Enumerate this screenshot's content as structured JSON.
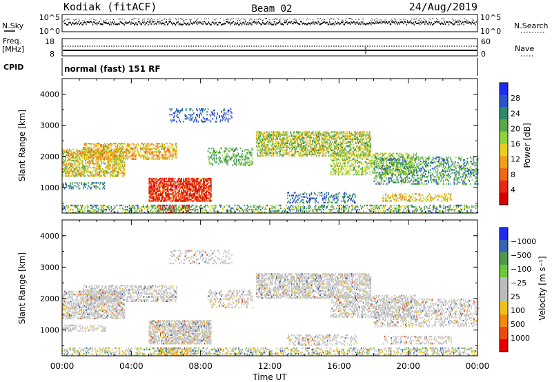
{
  "header": {
    "station": "Kodiak (fitACF)",
    "beam": "Beam 02",
    "date": "24/Aug/2019"
  },
  "strip_panels": {
    "nsky": {
      "label": "N.Sky",
      "tick_top": "10^5",
      "tick_bottom": "10^0"
    },
    "nsearch": {
      "label": "N.Search",
      "tick_top": "10^5",
      "tick_bottom": "10^0"
    },
    "freq": {
      "label_line1": "Freq.",
      "label_line2": "[MHz]",
      "tick_top": "18",
      "tick_bottom": "8"
    },
    "nave": {
      "label": "Nave",
      "tick_top": "60",
      "tick_bottom": "0"
    },
    "cpid": {
      "label": "CPID",
      "value": "normal (fast) 151 RF"
    }
  },
  "chart_data": [
    {
      "type": "heatmap",
      "panel": "power",
      "ylabel": "Slant Range [km]",
      "xlabel": "",
      "ylim": [
        180,
        4500
      ],
      "yticks": [
        "1000",
        "2000",
        "3000",
        "4000"
      ],
      "xticks": [
        "00:00",
        "04:00",
        "08:00",
        "12:00",
        "16:00",
        "20:00",
        "00:00"
      ],
      "colorbar": {
        "label": "Power [dB]",
        "tick_labels": [
          "4",
          "8",
          "12",
          "16",
          "20",
          "24",
          "28"
        ],
        "colors": [
          "#1e2bf0",
          "#2a55c8",
          "#2f8a6a",
          "#5aa84a",
          "#8fd33c",
          "#e8d020",
          "#f0a018",
          "#ee6a14",
          "#e62a10",
          "#d80000"
        ]
      }
    },
    {
      "type": "heatmap",
      "panel": "velocity",
      "ylabel": "Slant Range [km]",
      "xlabel": "Time UT",
      "ylim": [
        180,
        4500
      ],
      "yticks": [
        "1000",
        "2000",
        "3000",
        "4000"
      ],
      "xticks": [
        "00:00",
        "04:00",
        "08:00",
        "12:00",
        "16:00",
        "20:00",
        "00:00"
      ],
      "colorbar": {
        "label": "Velocity [m s⁻¹]",
        "tick_labels": [
          "1000",
          "500",
          "100",
          "25",
          "−25",
          "−100",
          "−500",
          "−1000"
        ],
        "colors": [
          "#1e2bf0",
          "#3464b4",
          "#4e9a4a",
          "#6ac83a",
          "#bcbcbc",
          "#bcbcbc",
          "#f0c018",
          "#f08a10",
          "#ee4a10",
          "#e60000"
        ]
      }
    }
  ]
}
